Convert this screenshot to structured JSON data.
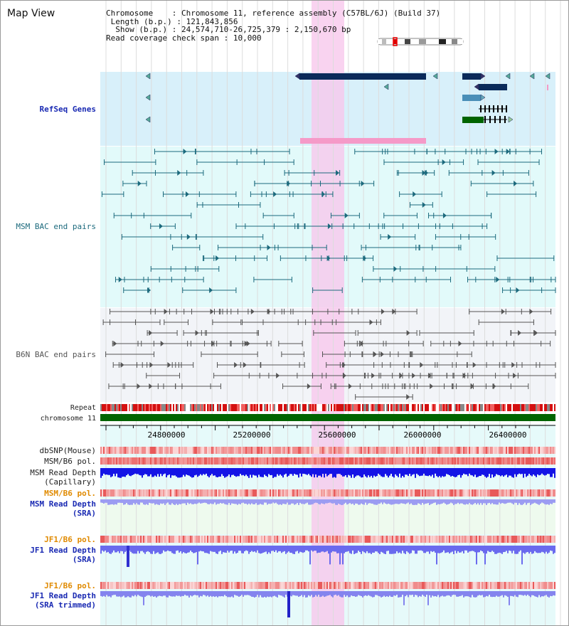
{
  "window": {
    "title": "Map View"
  },
  "header": {
    "chromosome_label": "Chromosome",
    "chromosome_value": "Chromosome 11, reference assembly (C57BL/6J) (Build 37)",
    "length_label": "Length (b.p.)",
    "length_value": "121,843,856",
    "show_label": "Show (b.p.)",
    "show_value": "24,574,710-26,725,379 : 2,150,670 bp",
    "coverage_label": "Read coverage check span",
    "coverage_value": "10,000"
  },
  "tracks": {
    "refseq": "RefSeq Genes",
    "msm_bac": "MSM BAC end pairs",
    "b6n_bac": "B6N BAC end pairs",
    "repeat": "Repeat",
    "chromosome": "chromosome 11",
    "dbsnp": "dbSNP(Mouse)",
    "msm_b6_pol": "MSM/B6 pol.",
    "msm_depth_cap_1": "MSM Read Depth",
    "msm_depth_cap_2": "(Capillary)",
    "msm_b6_pol_2": "MSM/B6 pol.",
    "msm_depth_sra_1": "MSM Read Depth",
    "msm_depth_sra_2": "(SRA)",
    "jf1_b6_pol": "JF1/B6 pol.",
    "jf1_depth_sra_1": "JF1 Read Depth",
    "jf1_depth_sra_2": "(SRA)",
    "jf1_b6_pol_2": "JF1/B6 pol.",
    "jf1_depth_trim_1": "JF1 Read Depth",
    "jf1_depth_trim_2": "(SRA trimmed)"
  },
  "ruler": {
    "ticks": [
      "24800000",
      "25200000",
      "25600000",
      "26000000",
      "26400000"
    ]
  },
  "colors": {
    "refseq_bg": "#d8f0fa",
    "msm_bg": "#e2fafa",
    "b6n_bg": "#f2f4f8",
    "highlight": "#f7c8ec",
    "gene_dark": "#0a2a5a",
    "gene_green": "#006400",
    "chromosome_bar": "#006400",
    "depth_dark": "#1414e6",
    "depth_light": "#8c8cf0"
  }
}
